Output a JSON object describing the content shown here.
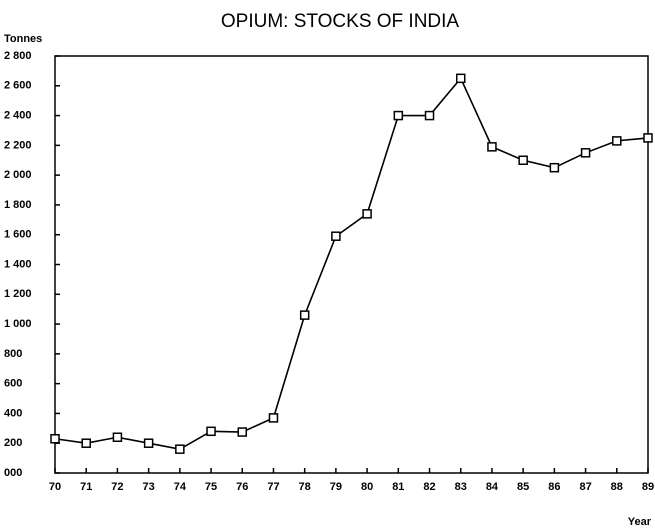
{
  "chart_data": {
    "type": "line",
    "title": "OPIUM: STOCKS OF INDIA",
    "y_label": "Tonnes",
    "x_label": "Year",
    "x": [
      70,
      71,
      72,
      73,
      74,
      75,
      76,
      77,
      78,
      79,
      80,
      81,
      82,
      83,
      84,
      85,
      86,
      87,
      88,
      89
    ],
    "series": [
      {
        "color": "#000000",
        "values": [
          230,
          200,
          240,
          200,
          160,
          280,
          275,
          370,
          1060,
          1590,
          1740,
          2400,
          2400,
          2650,
          2190,
          2100,
          2050,
          2150,
          2230,
          2250
        ]
      }
    ],
    "xlim": [
      70,
      89
    ],
    "xticks": [
      70,
      71,
      72,
      73,
      74,
      75,
      76,
      77,
      78,
      79,
      80,
      81,
      82,
      83,
      84,
      85,
      86,
      87,
      88,
      89
    ],
    "ylim": [
      0,
      2800
    ],
    "yticks": [
      {
        "value": 0,
        "label": "000"
      },
      200,
      400,
      600,
      800,
      {
        "value": 1000,
        "label": "1 000"
      },
      {
        "value": 1200,
        "label": "1 200"
      },
      {
        "value": 1400,
        "label": "1 400"
      },
      {
        "value": 1600,
        "label": "1 600"
      },
      {
        "value": 1800,
        "label": "1 800"
      },
      {
        "value": 2000,
        "label": "2 000"
      },
      {
        "value": 2200,
        "label": "2 200"
      },
      {
        "value": 2400,
        "label": "2 400"
      },
      {
        "value": 2600,
        "label": "2 600"
      },
      {
        "value": 2800,
        "label": "2 800"
      }
    ],
    "grid": false
  }
}
